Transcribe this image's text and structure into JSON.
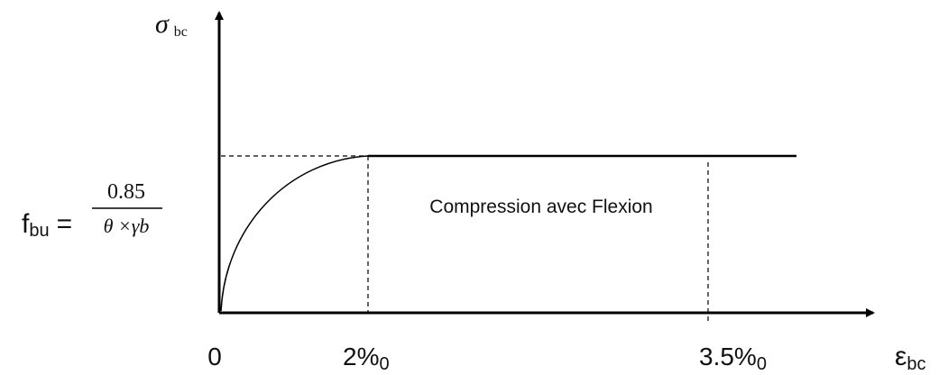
{
  "y_axis": {
    "symbol": "σ",
    "subscript": "bc"
  },
  "x_axis": {
    "symbol": "ε",
    "subscript": "bc"
  },
  "formula": {
    "name": "f",
    "subscript": "bu",
    "equals": "=",
    "numerator": "0.85",
    "denominator": "θ ×γb"
  },
  "region_label": "Compression avec Flexion",
  "x_labels": [
    {
      "main": "0"
    },
    {
      "main": "2%",
      "subscript": "0"
    },
    {
      "main": "3.5%",
      "subscript": "0"
    }
  ]
}
